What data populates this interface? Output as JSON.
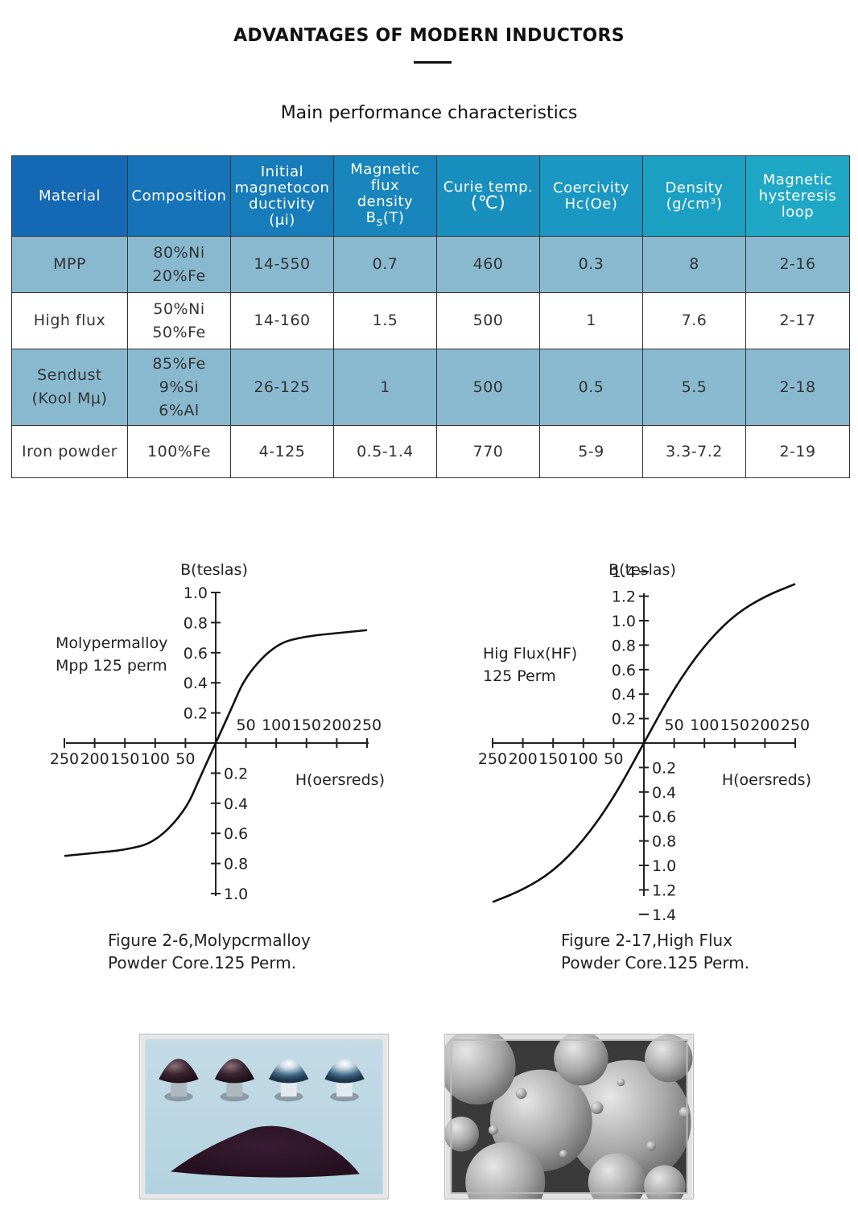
{
  "header": {
    "title": "ADVANTAGES OF MODERN INDUCTORS",
    "subtitle": "Main performance characteristics"
  },
  "table": {
    "headers": {
      "material": "Material",
      "composition": "Composition",
      "permeability": [
        "Initial",
        "magnetocon",
        "ductivity",
        "(μi)"
      ],
      "flux_density": [
        "Magnetic",
        "flux",
        "density"
      ],
      "flux_symbol": "B",
      "flux_sub": "s",
      "flux_unit": "(T)",
      "curie": [
        "Curie temp.",
        "(℃)"
      ],
      "coercivity": [
        "Coercivity",
        "Hc(Oe)"
      ],
      "density": [
        "Density",
        "(g/cm³)"
      ],
      "hysteresis": [
        "Magnetic",
        "hysteresis",
        "loop"
      ]
    },
    "rows": [
      {
        "material": [
          "MPP"
        ],
        "composition": [
          "80%Ni",
          "20%Fe"
        ],
        "permeability": "14-550",
        "flux": "0.7",
        "curie": "460",
        "coercivity": "0.3",
        "density": "8",
        "loop": "2-16"
      },
      {
        "material": [
          "High flux"
        ],
        "composition": [
          "50%Ni",
          "50%Fe"
        ],
        "permeability": "14-160",
        "flux": "1.5",
        "curie": "500",
        "coercivity": "1",
        "density": "7.6",
        "loop": "2-17"
      },
      {
        "material": [
          "Sendust",
          "(Kool Mμ)"
        ],
        "composition": [
          "85%Fe",
          "9%Si",
          "6%Al"
        ],
        "permeability": "26-125",
        "flux": "1",
        "curie": "500",
        "coercivity": "0.5",
        "density": "5.5",
        "loop": "2-18"
      },
      {
        "material": [
          "Iron powder"
        ],
        "composition": [
          "100%Fe"
        ],
        "permeability": "4-125",
        "flux": "0.5-1.4",
        "curie": "770",
        "coercivity": "5-9",
        "density": "3.3-7.2",
        "loop": "2-19"
      }
    ]
  },
  "chart_data": [
    {
      "type": "line",
      "ylabel": "B(teslas)",
      "xlabel": "H(oersreds)",
      "annotation": [
        "Molypermalloy",
        "Mpp 125 perm"
      ],
      "caption": [
        "Figure 2-6,Molypcrmalloy",
        "Powder Core.125 Perm."
      ],
      "x_ticks_positive": [
        "50",
        "100",
        "150",
        "200",
        "250"
      ],
      "x_ticks_negative": [
        "250",
        "200",
        "150",
        "100",
        "50"
      ],
      "y_ticks_positive": [
        "1.0",
        "0.8",
        "0.6",
        "0.4",
        "0.2"
      ],
      "y_ticks_negative": [
        "0.2",
        "0.4",
        "0.6",
        "0.8",
        "1.0"
      ],
      "xlim": [
        -250,
        250
      ],
      "ylim": [
        -1.0,
        1.0
      ],
      "series": [
        {
          "x": [
            -250,
            -200,
            -150,
            -100,
            -50,
            -25,
            0,
            25,
            50,
            100,
            150,
            200,
            250
          ],
          "y": [
            -0.75,
            -0.73,
            -0.71,
            -0.66,
            -0.45,
            -0.22,
            0,
            0.22,
            0.45,
            0.66,
            0.71,
            0.73,
            0.75
          ]
        }
      ]
    },
    {
      "type": "line",
      "ylabel": "B(teslas)",
      "xlabel": "H(oersreds)",
      "annotation": [
        "Hig Flux(HF)",
        "125 Perm"
      ],
      "caption": [
        "Figure 2-17,High Flux",
        "Powder Core.125 Perm."
      ],
      "x_ticks_positive": [
        "50",
        "100",
        "150",
        "200",
        "250"
      ],
      "x_ticks_negative": [
        "250",
        "200",
        "150",
        "100",
        "50"
      ],
      "y_ticks_positive": [
        "1.4",
        "1.2",
        "1.0",
        "0.8",
        "0.6",
        "0.4",
        "0.2"
      ],
      "y_ticks_negative": [
        "0.2",
        "0.4",
        "0.6",
        "0.8",
        "1.0",
        "1.2",
        "1.4"
      ],
      "xlim": [
        -250,
        250
      ],
      "ylim": [
        -1.4,
        1.4
      ],
      "series": [
        {
          "x": [
            -250,
            -200,
            -150,
            -100,
            -50,
            0,
            50,
            100,
            150,
            200,
            250
          ],
          "y": [
            -1.3,
            -1.2,
            -1.05,
            -0.8,
            -0.45,
            0,
            0.45,
            0.8,
            1.05,
            1.2,
            1.3
          ]
        }
      ]
    }
  ],
  "photos": [
    {
      "subject": "powder-core-samples"
    },
    {
      "subject": "powder-particles-micrograph"
    }
  ]
}
